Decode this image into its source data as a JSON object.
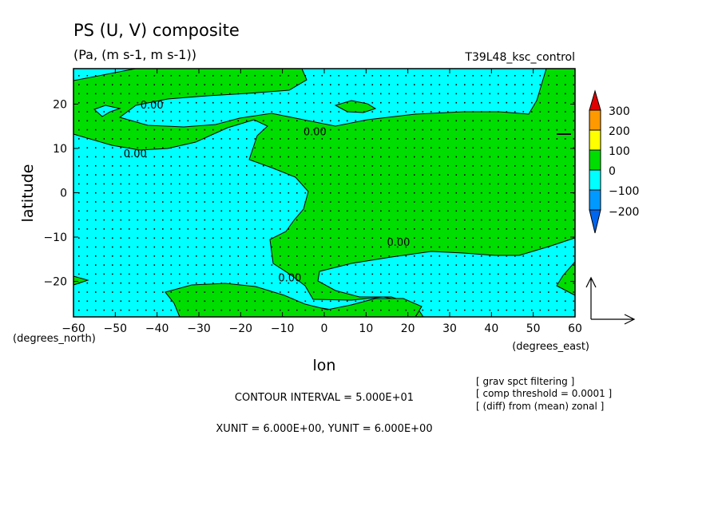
{
  "chart_data": {
    "type": "heatmap",
    "title": "PS (U, V) composite",
    "subtitle": "(Pa, (m s-1, m s-1))",
    "run_label": "T39L48_ksc_control",
    "xlabel": "lon",
    "ylabel": "latitude",
    "x_unit_label": "(degrees_east)",
    "y_unit_label": "(degrees_north)",
    "xlim": [
      -60,
      60
    ],
    "ylim": [
      -28,
      28
    ],
    "x_ticks": [
      -60,
      -50,
      -40,
      -30,
      -20,
      -10,
      0,
      10,
      20,
      30,
      40,
      50,
      60
    ],
    "x_tick_labels": [
      "−60",
      "−50",
      "−40",
      "−30",
      "−20",
      "−10",
      "0",
      "10",
      "20",
      "30",
      "40",
      "50",
      "60"
    ],
    "y_ticks": [
      -20,
      -10,
      0,
      10,
      20
    ],
    "y_tick_labels": [
      "−20",
      "−10",
      "0",
      "10",
      "20"
    ],
    "contour_labels": [
      {
        "text": "0.00",
        "lon": -44,
        "lat": 19
      },
      {
        "text": "0.00",
        "lon": -5,
        "lat": 13
      },
      {
        "text": "0.00",
        "lon": -48,
        "lat": 8
      },
      {
        "text": "0.00",
        "lon": 15,
        "lat": -12
      },
      {
        "text": "0.00",
        "lon": -11,
        "lat": -20
      }
    ],
    "colorbar": {
      "levels": [
        300,
        200,
        100,
        0,
        -100,
        -200
      ],
      "labels": [
        "300",
        "200",
        "100",
        "0",
        "−100",
        "−200"
      ],
      "colors": [
        "#e00000",
        "#ff9900",
        "#ffff00",
        "#00dd00",
        "#00ffff",
        "#0099ff",
        "#0066ee"
      ]
    },
    "fill_colors": {
      "positive": "#00dd00",
      "negative": "#00ffff"
    },
    "contour_interval": "CONTOUR INTERVAL = 5.000E+01",
    "units_line": "XUNIT = 6.000E+00, YUNIT = 6.000E+00",
    "notes": [
      "[ grav spct filtering ]",
      "[ comp threshold = 0.0001 ]",
      "[ (diff) from (mean) zonal ]"
    ]
  }
}
